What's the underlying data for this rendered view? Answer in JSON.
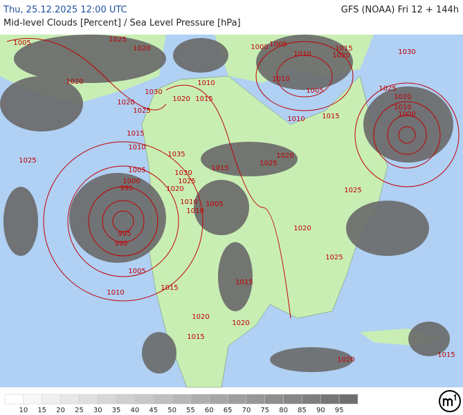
{
  "header": {
    "datetime": "Thu, 25.12.2025 12:00 UTC",
    "model": "GFS (NOAA) Fri 12 + 144h",
    "subtitle": "Mid-level Clouds [Percent] / Sea Level Pressure [hPa]"
  },
  "map": {
    "isobar_labels": [
      "1005",
      "1025",
      "1020",
      "1000",
      "1005",
      "1010",
      "1020",
      "1015",
      "1030",
      "1020",
      "1010",
      "1010",
      "1005",
      "1025",
      "1020",
      "1010",
      "1000",
      "1020",
      "1015",
      "1030",
      "1020",
      "1025",
      "1015",
      "1010",
      "1015",
      "1010",
      "1035",
      "1020",
      "1025",
      "1025",
      "1005",
      "1030",
      "1015",
      "1000",
      "995",
      "1025",
      "1020",
      "1025",
      "1010",
      "1005",
      "1010",
      "1020",
      "995",
      "990",
      "1025",
      "1005",
      "1015",
      "1015",
      "1010",
      "1020",
      "1020",
      "1015",
      "1020",
      "1015"
    ]
  },
  "legend": {
    "labels": [
      "10",
      "15",
      "20",
      "25",
      "30",
      "35",
      "40",
      "45",
      "50",
      "55",
      "60",
      "65",
      "70",
      "75",
      "80",
      "85",
      "90",
      "95"
    ]
  }
}
